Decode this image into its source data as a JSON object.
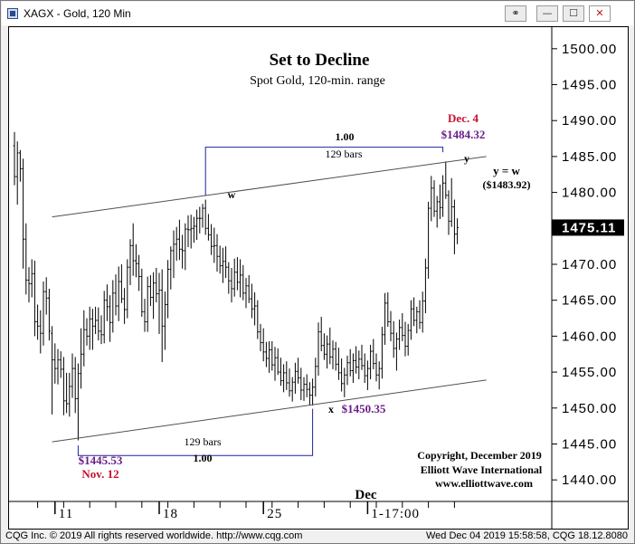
{
  "window": {
    "title": "XAGX - Gold, 120 Min",
    "icon": "chart-window-icon",
    "buttons": [
      "link-icon",
      "minimize-icon",
      "maximize-icon",
      "close-icon"
    ],
    "button_glyphs": [
      "⚭",
      "—",
      "☐",
      "✕"
    ]
  },
  "status_bar": {
    "left": "CQG Inc. © 2019 All rights reserved worldwide. http://www.cqg.com",
    "right": "Wed Dec 04 2019 15:58:58, CQG 18.12.8080"
  },
  "chart_data": {
    "type": "candlestick",
    "title": "Set to Decline",
    "subtitle": "Spot Gold, 120-min. range",
    "ylim": [
      1437,
      1503
    ],
    "y_ticks": [
      1500,
      1495,
      1490,
      1485,
      1480,
      1475,
      1470,
      1465,
      1460,
      1455,
      1450,
      1445,
      1440
    ],
    "y_tick_labels": [
      "1500.00",
      "1495.00",
      "1490.00",
      "1485.00",
      "1480.00",
      "1475.00",
      "1470.00",
      "1465.00",
      "1460.00",
      "1455.00",
      "1450.00",
      "1445.00",
      "1440.00"
    ],
    "last_price": "1475.11",
    "x_labels": [
      "11",
      "18",
      "25",
      "1-17:00"
    ],
    "x_month_label": "Dec",
    "bars_per_label_interval": 36,
    "points": [
      {
        "label": "w",
        "bar": 66,
        "price": 1479.0
      },
      {
        "label": "x",
        "bar": 103,
        "price": 1450.35
      },
      {
        "label": "y",
        "bar": 148,
        "price": 1484.32
      }
    ],
    "ohlc": [
      [
        1486.5,
        1488.4,
        1481.0,
        1482.2
      ],
      [
        1482.2,
        1487.1,
        1478.3,
        1485.5
      ],
      [
        1485.5,
        1485.9,
        1481.5,
        1483.3
      ],
      [
        1483.3,
        1484.7,
        1469.4,
        1473.5
      ],
      [
        1473.5,
        1475.7,
        1465.8,
        1467.8
      ],
      [
        1467.8,
        1469.6,
        1464.7,
        1467.3
      ],
      [
        1467.3,
        1470.7,
        1465.4,
        1468.7
      ],
      [
        1468.7,
        1470.5,
        1460.0,
        1462.0
      ],
      [
        1462.0,
        1464.4,
        1459.5,
        1461.4
      ],
      [
        1461.4,
        1463.6,
        1457.6,
        1460.4
      ],
      [
        1460.4,
        1467.6,
        1458.7,
        1466.2
      ],
      [
        1466.2,
        1468.2,
        1463.0,
        1465.3
      ],
      [
        1465.3,
        1466.6,
        1459.4,
        1460.7
      ],
      [
        1460.4,
        1461.4,
        1449.1,
        1456.7
      ],
      [
        1456.7,
        1459.0,
        1453.4,
        1455.5
      ],
      [
        1455.5,
        1458.2,
        1453.3,
        1456.7
      ],
      [
        1456.7,
        1457.9,
        1454.2,
        1455.4
      ],
      [
        1455.4,
        1457.1,
        1449.0,
        1451.0
      ],
      [
        1451.0,
        1454.9,
        1449.3,
        1450.6
      ],
      [
        1450.6,
        1454.9,
        1448.8,
        1453.0
      ],
      [
        1453.0,
        1457.6,
        1451.4,
        1455.5
      ],
      [
        1455.5,
        1457.1,
        1449.3,
        1451.3
      ],
      [
        1451.3,
        1456.2,
        1445.5,
        1454.8
      ],
      [
        1454.8,
        1461.1,
        1452.7,
        1457.5
      ],
      [
        1457.5,
        1463.6,
        1455.8,
        1460.9
      ],
      [
        1460.9,
        1462.5,
        1458.7,
        1460.0
      ],
      [
        1460.0,
        1464.1,
        1458.1,
        1462.4
      ],
      [
        1462.4,
        1463.8,
        1458.1,
        1461.4
      ],
      [
        1461.4,
        1464.1,
        1460.3,
        1462.2
      ],
      [
        1462.2,
        1464.0,
        1459.4,
        1460.7
      ],
      [
        1460.7,
        1462.9,
        1458.9,
        1460.2
      ],
      [
        1460.2,
        1466.3,
        1459.0,
        1465.0
      ],
      [
        1465.0,
        1467.2,
        1462.1,
        1464.1
      ],
      [
        1464.1,
        1465.7,
        1459.2,
        1461.9
      ],
      [
        1461.9,
        1467.8,
        1460.5,
        1466.0
      ],
      [
        1466.0,
        1468.6,
        1462.9,
        1464.2
      ],
      [
        1464.2,
        1469.7,
        1462.1,
        1467.6
      ],
      [
        1467.6,
        1470.0,
        1464.6,
        1465.2
      ],
      [
        1465.2,
        1466.7,
        1461.7,
        1463.7
      ],
      [
        1463.7,
        1470.7,
        1462.5,
        1469.6
      ],
      [
        1469.6,
        1473.5,
        1467.1,
        1472.6
      ],
      [
        1472.6,
        1475.7,
        1468.4,
        1470.5
      ],
      [
        1470.5,
        1472.8,
        1468.2,
        1470.1
      ],
      [
        1470.1,
        1471.3,
        1466.3,
        1468.3
      ],
      [
        1468.3,
        1469.4,
        1462.7,
        1463.4
      ],
      [
        1463.4,
        1465.2,
        1460.6,
        1462.0
      ],
      [
        1462.0,
        1468.3,
        1460.6,
        1466.9
      ],
      [
        1466.9,
        1468.5,
        1464.2,
        1465.4
      ],
      [
        1465.4,
        1468.9,
        1462.4,
        1467.4
      ],
      [
        1467.4,
        1469.5,
        1464.7,
        1465.9
      ],
      [
        1465.9,
        1468.8,
        1460.3,
        1466.4
      ],
      [
        1466.4,
        1469.3,
        1456.4,
        1461.4
      ],
      [
        1461.4,
        1466.2,
        1458.1,
        1464.4
      ],
      [
        1464.4,
        1470.6,
        1462.5,
        1469.3
      ],
      [
        1469.3,
        1472.5,
        1466.5,
        1471.9
      ],
      [
        1471.9,
        1474.7,
        1468.1,
        1472.8
      ],
      [
        1472.8,
        1475.2,
        1470.5,
        1473.5
      ],
      [
        1473.5,
        1476.2,
        1470.6,
        1472.1
      ],
      [
        1472.1,
        1474.1,
        1469.4,
        1471.9
      ],
      [
        1471.9,
        1475.7,
        1469.2,
        1474.9
      ],
      [
        1474.9,
        1476.8,
        1472.4,
        1474.8
      ],
      [
        1474.8,
        1476.9,
        1472.2,
        1475.0
      ],
      [
        1475.0,
        1476.6,
        1473.0,
        1475.3
      ],
      [
        1475.3,
        1477.6,
        1473.4,
        1476.4
      ],
      [
        1476.4,
        1478.0,
        1474.3,
        1476.4
      ],
      [
        1476.4,
        1478.4,
        1475.1,
        1477.8
      ],
      [
        1477.8,
        1479.0,
        1474.1,
        1475.0
      ],
      [
        1475.0,
        1477.0,
        1473.3,
        1474.1
      ],
      [
        1474.1,
        1475.6,
        1471.3,
        1472.5
      ],
      [
        1472.5,
        1475.1,
        1470.2,
        1472.6
      ],
      [
        1472.6,
        1474.2,
        1469.0,
        1471.1
      ],
      [
        1471.1,
        1472.6,
        1468.7,
        1469.8
      ],
      [
        1469.8,
        1472.3,
        1467.4,
        1470.4
      ],
      [
        1470.4,
        1472.5,
        1468.1,
        1469.6
      ],
      [
        1469.6,
        1470.3,
        1465.9,
        1467.7
      ],
      [
        1467.7,
        1469.5,
        1464.7,
        1466.6
      ],
      [
        1466.6,
        1470.8,
        1465.5,
        1468.9
      ],
      [
        1468.9,
        1471.0,
        1466.4,
        1467.5
      ],
      [
        1467.5,
        1470.7,
        1465.4,
        1468.5
      ],
      [
        1468.5,
        1469.9,
        1465.0,
        1466.0
      ],
      [
        1466.0,
        1468.1,
        1463.9,
        1467.0
      ],
      [
        1467.0,
        1468.5,
        1464.6,
        1465.2
      ],
      [
        1465.2,
        1467.3,
        1462.5,
        1463.8
      ],
      [
        1463.8,
        1466.1,
        1461.5,
        1464.2
      ],
      [
        1464.2,
        1465.0,
        1459.6,
        1460.6
      ],
      [
        1460.6,
        1461.7,
        1457.9,
        1459.1
      ],
      [
        1459.1,
        1461.1,
        1456.5,
        1457.8
      ],
      [
        1457.8,
        1459.2,
        1455.7,
        1456.9
      ],
      [
        1456.9,
        1459.3,
        1454.9,
        1458.1
      ],
      [
        1458.1,
        1459.3,
        1455.2,
        1456.0
      ],
      [
        1456.0,
        1458.5,
        1453.8,
        1457.0
      ],
      [
        1457.0,
        1458.3,
        1454.6,
        1455.0
      ],
      [
        1455.0,
        1457.0,
        1453.1,
        1453.8
      ],
      [
        1453.8,
        1456.1,
        1452.2,
        1454.9
      ],
      [
        1454.9,
        1456.5,
        1452.5,
        1453.5
      ],
      [
        1453.5,
        1455.5,
        1451.6,
        1452.4
      ],
      [
        1452.4,
        1454.3,
        1450.9,
        1453.6
      ],
      [
        1453.6,
        1456.3,
        1452.0,
        1455.1
      ],
      [
        1455.1,
        1457.0,
        1453.4,
        1454.2
      ],
      [
        1454.2,
        1455.6,
        1451.1,
        1452.5
      ],
      [
        1452.5,
        1454.3,
        1451.0,
        1453.3
      ],
      [
        1453.3,
        1454.7,
        1451.5,
        1452.6
      ],
      [
        1452.6,
        1453.6,
        1450.4,
        1451.8
      ],
      [
        1451.8,
        1454.1,
        1450.35,
        1452.9
      ],
      [
        1452.9,
        1457.0,
        1451.6,
        1455.8
      ],
      [
        1455.8,
        1461.9,
        1454.5,
        1460.6
      ],
      [
        1460.6,
        1462.7,
        1457.9,
        1458.7
      ],
      [
        1458.7,
        1460.4,
        1456.7,
        1457.5
      ],
      [
        1457.5,
        1460.1,
        1455.5,
        1458.9
      ],
      [
        1458.9,
        1461.2,
        1456.1,
        1457.1
      ],
      [
        1457.1,
        1459.4,
        1455.4,
        1458.2
      ],
      [
        1458.2,
        1459.2,
        1455.2,
        1456.1
      ],
      [
        1456.1,
        1458.4,
        1453.9,
        1454.9
      ],
      [
        1454.9,
        1456.9,
        1452.3,
        1453.4
      ],
      [
        1453.4,
        1455.6,
        1451.5,
        1454.6
      ],
      [
        1454.6,
        1457.3,
        1453.2,
        1456.3
      ],
      [
        1456.3,
        1458.2,
        1454.4,
        1455.2
      ],
      [
        1455.2,
        1457.6,
        1453.5,
        1456.6
      ],
      [
        1456.6,
        1458.6,
        1454.8,
        1455.7
      ],
      [
        1455.7,
        1458.0,
        1454.0,
        1456.8
      ],
      [
        1456.8,
        1458.8,
        1455.3,
        1455.9
      ],
      [
        1455.9,
        1457.6,
        1453.5,
        1454.5
      ],
      [
        1454.5,
        1456.6,
        1452.5,
        1455.5
      ],
      [
        1455.5,
        1458.8,
        1454.0,
        1457.9
      ],
      [
        1457.9,
        1459.6,
        1455.4,
        1456.2
      ],
      [
        1456.2,
        1457.6,
        1453.7,
        1454.6
      ],
      [
        1454.6,
        1456.5,
        1452.6,
        1455.5
      ],
      [
        1455.5,
        1461.3,
        1454.1,
        1460.2
      ],
      [
        1460.2,
        1466.0,
        1458.8,
        1464.6
      ],
      [
        1464.6,
        1466.1,
        1461.3,
        1462.0
      ],
      [
        1462.0,
        1463.5,
        1459.3,
        1460.4
      ],
      [
        1460.4,
        1462.1,
        1457.0,
        1458.3
      ],
      [
        1458.3,
        1460.5,
        1455.2,
        1459.6
      ],
      [
        1459.6,
        1462.3,
        1458.1,
        1461.2
      ],
      [
        1461.2,
        1463.2,
        1459.3,
        1460.1
      ],
      [
        1460.1,
        1462.0,
        1457.2,
        1458.6
      ],
      [
        1458.6,
        1461.7,
        1457.3,
        1460.8
      ],
      [
        1460.8,
        1465.0,
        1459.5,
        1463.8
      ],
      [
        1463.8,
        1465.4,
        1461.4,
        1462.2
      ],
      [
        1462.2,
        1464.1,
        1460.4,
        1463.4
      ],
      [
        1463.4,
        1465.0,
        1461.0,
        1461.9
      ],
      [
        1461.9,
        1466.2,
        1460.5,
        1464.9
      ],
      [
        1464.9,
        1470.8,
        1463.2,
        1469.5
      ],
      [
        1469.5,
        1478.7,
        1468.0,
        1477.8
      ],
      [
        1477.8,
        1482.3,
        1476.0,
        1480.6
      ],
      [
        1480.6,
        1481.7,
        1476.6,
        1477.4
      ],
      [
        1477.4,
        1479.5,
        1475.1,
        1478.7
      ],
      [
        1478.7,
        1481.1,
        1476.3,
        1477.9
      ],
      [
        1477.9,
        1482.4,
        1476.6,
        1481.3
      ],
      [
        1481.3,
        1484.32,
        1479.1,
        1479.6
      ],
      [
        1479.6,
        1480.3,
        1474.1,
        1476.0
      ],
      [
        1476.0,
        1482.0,
        1475.2,
        1478.0
      ],
      [
        1478.0,
        1479.0,
        1471.4,
        1474.2
      ],
      [
        1474.2,
        1476.4,
        1472.8,
        1475.11
      ]
    ],
    "lines": [
      {
        "name": "upper-channel-line",
        "from": {
          "bar": 13,
          "price": 1476.6
        },
        "to": {
          "bar": 163,
          "price": 1485.0
        }
      },
      {
        "name": "lower-channel-line",
        "from": {
          "bar": 13,
          "price": 1445.3
        },
        "to": {
          "bar": 163,
          "price": 1453.9
        }
      }
    ],
    "annotations": {
      "title": "Set to Decline",
      "subtitle": "Spot Gold, 120-min. range",
      "top_ratio": "1.00",
      "top_bars": "129 bars",
      "bottom_ratio": "1.00",
      "bottom_bars": "129 bars",
      "w_label": "w",
      "x_label": "x",
      "y_label": "y",
      "x_price": "$1450.35",
      "low_price": "$1445.53",
      "low_date": "Nov. 12",
      "high_date": "Dec. 4",
      "high_price": "$1484.32",
      "eq_label": "y = w",
      "eq_price": "($1483.92)",
      "copyright_1": "Copyright, December 2019",
      "copyright_2": "Elliott Wave International",
      "copyright_3": "www.elliottwave.com"
    },
    "colors": {
      "bars": "#000000",
      "price_purple": "#6b1f8a",
      "date_red": "#c8102e",
      "measure_line": "#2020a0",
      "channel": "#505050"
    }
  }
}
